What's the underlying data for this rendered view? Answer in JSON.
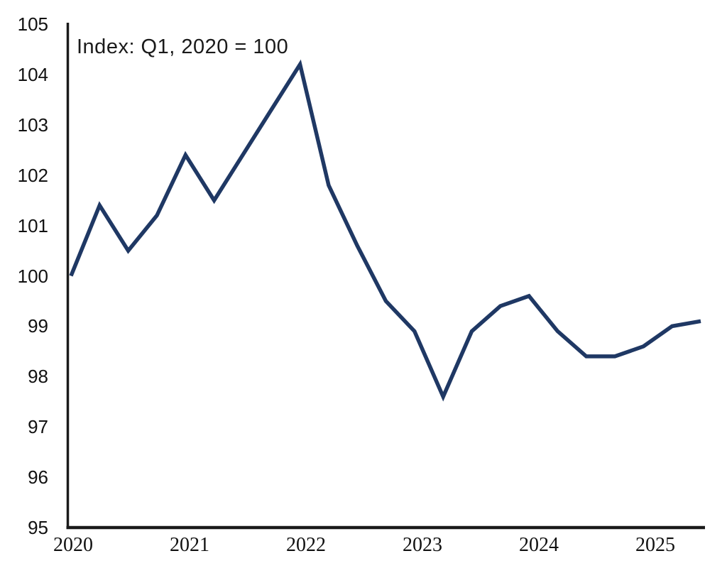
{
  "chart_data": {
    "type": "line",
    "title": "",
    "annotation": "Index: Q1, 2020 = 100",
    "xlabel": "",
    "ylabel": "",
    "ylim": [
      95,
      105
    ],
    "grid": false,
    "legend_position": "none",
    "background": "#ffffff",
    "axis_color": "#1a1a1a",
    "text_color": "#111111",
    "x_axis_tick_labels": [
      "2020",
      "2021",
      "2022",
      "2023",
      "2024",
      "2025"
    ],
    "y_axis_tick_labels": [
      "105",
      "104",
      "103",
      "102",
      "101",
      "100",
      "99",
      "98",
      "97",
      "96",
      "95"
    ],
    "x_categories": [
      "2020 Q1",
      "2020 Q2",
      "2020 Q3",
      "2020 Q4",
      "2021 Q1",
      "2021 Q2",
      "2021 Q3",
      "2021 Q4",
      "2022 Q1",
      "2022 Q2",
      "2022 Q3",
      "2022 Q4",
      "2023 Q1",
      "2023 Q2",
      "2023 Q3",
      "2023 Q4",
      "2024 Q1",
      "2024 Q2",
      "2024 Q3",
      "2024 Q4",
      "2025 Q1",
      "2025 Q2",
      "2025 Q3"
    ],
    "series": [
      {
        "name": "index-q1-2020-100",
        "color": "#1f3864",
        "values": [
          100.0,
          101.4,
          100.5,
          101.2,
          102.4,
          101.5,
          102.4,
          103.3,
          104.2,
          101.8,
          100.6,
          99.5,
          98.9,
          97.6,
          98.9,
          99.4,
          99.6,
          98.9,
          98.4,
          98.4,
          98.6,
          99.0,
          99.1
        ]
      }
    ]
  }
}
